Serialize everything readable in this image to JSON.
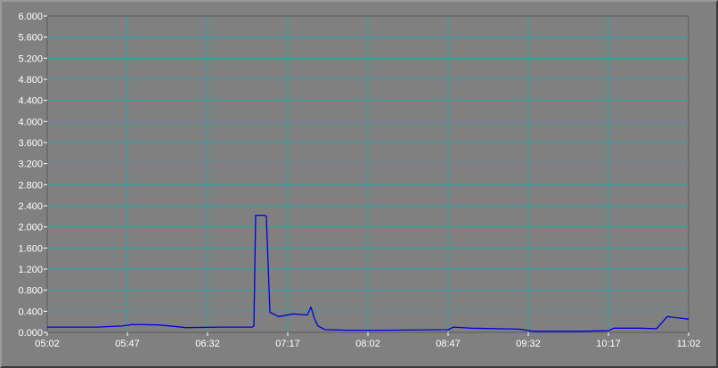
{
  "chart_data": {
    "type": "line",
    "title": "",
    "xlabel": "",
    "ylabel": "",
    "ylim": [
      0,
      6
    ],
    "grid": true,
    "y_ticks": [
      "0.000",
      "0.400",
      "0.800",
      "1.200",
      "1.600",
      "2.000",
      "2.400",
      "2.800",
      "3.200",
      "3.600",
      "4.000",
      "4.400",
      "4.800",
      "5.200",
      "5.600",
      "6.000"
    ],
    "x_ticks": [
      "05:02",
      "05:47",
      "06:32",
      "07:17",
      "08:02",
      "08:47",
      "09:32",
      "10:17",
      "11:02"
    ],
    "x_range_minutes": [
      302,
      662
    ],
    "colors": {
      "line": "#0000e0",
      "plot_bg": "#808080",
      "grid": "#2aa8a8",
      "text": "#ffffff"
    },
    "series": [
      {
        "x": [
          "05:02",
          "05:30",
          "05:44",
          "05:50",
          "06:05",
          "06:20",
          "06:40",
          "06:52",
          "06:57",
          "06:58",
          "06:59",
          "07:04",
          "07:05",
          "07:07",
          "07:12",
          "07:20",
          "07:28",
          "07:30",
          "07:32",
          "07:34",
          "07:38",
          "07:50",
          "08:10",
          "08:47",
          "08:50",
          "09:00",
          "09:27",
          "09:35",
          "10:00",
          "10:17",
          "10:20",
          "10:35",
          "10:44",
          "10:50",
          "11:02"
        ],
        "values": [
          0.1,
          0.1,
          0.12,
          0.15,
          0.14,
          0.09,
          0.1,
          0.1,
          0.1,
          0.12,
          2.22,
          2.22,
          2.2,
          0.38,
          0.3,
          0.35,
          0.33,
          0.48,
          0.26,
          0.12,
          0.05,
          0.04,
          0.04,
          0.05,
          0.1,
          0.08,
          0.06,
          0.02,
          0.02,
          0.03,
          0.08,
          0.08,
          0.07,
          0.3,
          0.25
        ]
      }
    ]
  }
}
